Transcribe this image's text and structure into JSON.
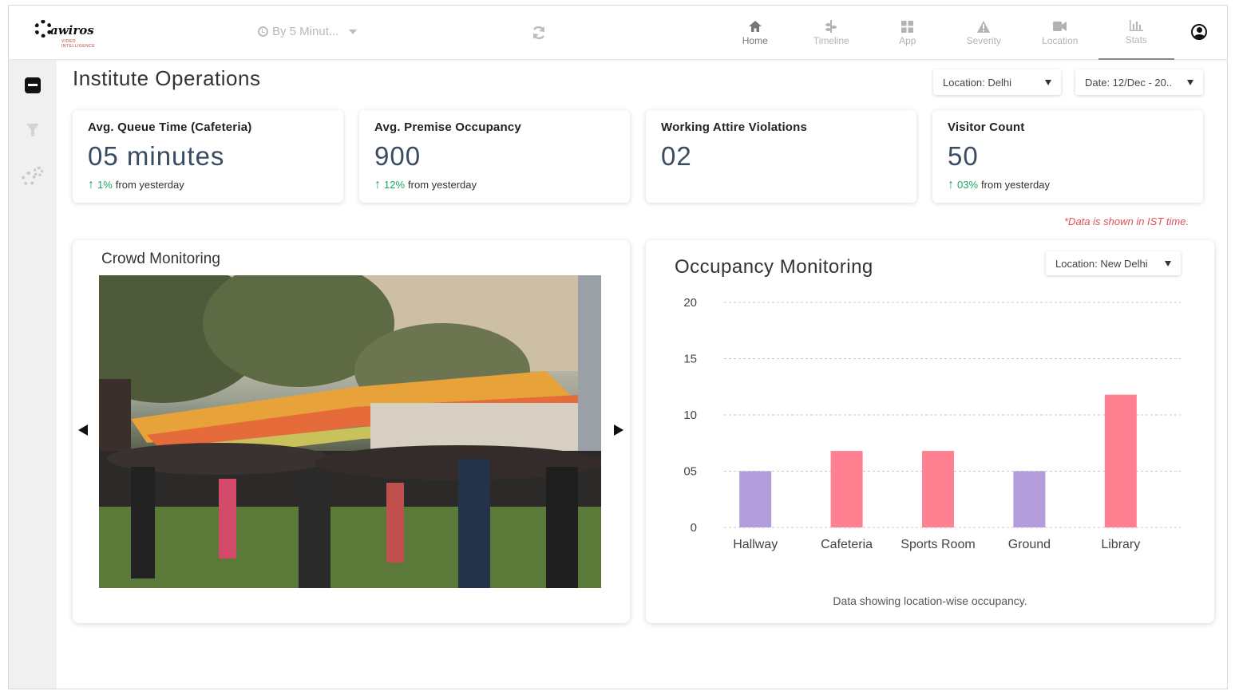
{
  "brand": {
    "name": "awiros",
    "tagline": "VIDEO INTELLIGENCE"
  },
  "toolbar": {
    "interval_label": "By 5 Minut..."
  },
  "nav": [
    {
      "label": "Home",
      "icon": "home-icon"
    },
    {
      "label": "Timeline",
      "icon": "timeline-icon"
    },
    {
      "label": "App",
      "icon": "app-grid-icon"
    },
    {
      "label": "Severity",
      "icon": "warning-icon"
    },
    {
      "label": "Location",
      "icon": "video-camera-icon"
    },
    {
      "label": "Stats",
      "icon": "bar-chart-icon"
    }
  ],
  "page": {
    "title": "Institute Operations"
  },
  "filters": {
    "location": "Location: Delhi",
    "date": "Date: 12/Dec - 20.."
  },
  "cards": [
    {
      "title": "Avg. Queue Time (Cafeteria)",
      "value": "05 minutes",
      "pct": "1%",
      "suffix": "from yesterday"
    },
    {
      "title": "Avg. Premise Occupancy",
      "value": "900",
      "pct": "12%",
      "suffix": "from yesterday"
    },
    {
      "title": "Working Attire Violations",
      "value": "02"
    },
    {
      "title": "Visitor Count",
      "value": "50",
      "pct": "03%",
      "suffix": "from yesterday"
    }
  ],
  "ist_note": "*Data is shown in IST time.",
  "crowd": {
    "title": "Crowd Monitoring"
  },
  "occupancy": {
    "title": "Occupancy Monitoring",
    "location": "Location: New Delhi",
    "caption": "Data showing location-wise occupancy."
  },
  "colors": {
    "accent_green": "#1aa865",
    "bar_purple": "#b39ddb",
    "bar_pink": "#ff8090",
    "note_red": "#e0505a",
    "value_blue": "#3b4b62"
  },
  "chart_data": {
    "type": "bar",
    "categories": [
      "Hallway",
      "Cafeteria",
      "Sports Room",
      "Ground",
      "Library"
    ],
    "values": [
      5,
      6.8,
      6.8,
      5,
      11.8
    ],
    "bar_colors": [
      "#b39ddb",
      "#ff8090",
      "#ff8090",
      "#b39ddb",
      "#ff8090"
    ],
    "ylim": [
      0,
      20
    ],
    "yticks": [
      0,
      5,
      10,
      15,
      20
    ],
    "ytick_labels": [
      "0",
      "05",
      "10",
      "15",
      "20"
    ],
    "grid": true,
    "xlabel": "",
    "ylabel": ""
  }
}
